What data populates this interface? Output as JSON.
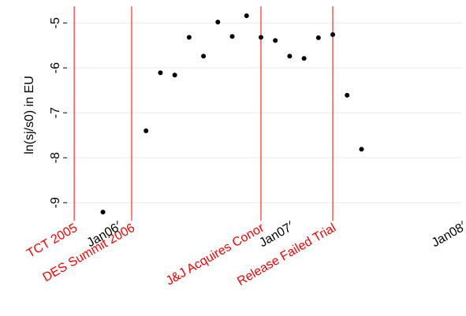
{
  "chart_data": {
    "type": "scatter",
    "y_label": "ln(sj/s0) in EU",
    "x": [
      -1,
      2,
      3,
      4,
      5,
      6,
      7,
      8,
      9,
      10,
      11,
      12,
      13,
      14,
      15,
      16,
      17
    ],
    "values": [
      -9.21,
      -7.4,
      -6.11,
      -6.16,
      -5.32,
      -5.74,
      -4.98,
      -5.3,
      -4.84,
      -5.32,
      -5.39,
      -5.74,
      -5.79,
      -5.33,
      -5.26,
      -6.61,
      -7.81
    ],
    "color": "#000000",
    "xlim": [
      -3.5,
      24
    ],
    "xticks": [
      {
        "value": 0,
        "label": "Jan06"
      },
      {
        "value": 12,
        "label": "Jan07"
      },
      {
        "value": 24,
        "label": "Jan08"
      }
    ],
    "ylim": [
      -9.4,
      -4.7
    ],
    "yticks": [
      -9,
      -8,
      -7,
      -6,
      -5
    ],
    "grid": true,
    "annotations": [
      {
        "x": -3,
        "label": "TCT 2005"
      },
      {
        "x": 1,
        "label": "DES Summit 2006"
      },
      {
        "x": 10,
        "label": "J&J Acquires Conor"
      },
      {
        "x": 15,
        "label": "Release Failed Trial"
      }
    ],
    "annotation_color": "#ff0000"
  }
}
